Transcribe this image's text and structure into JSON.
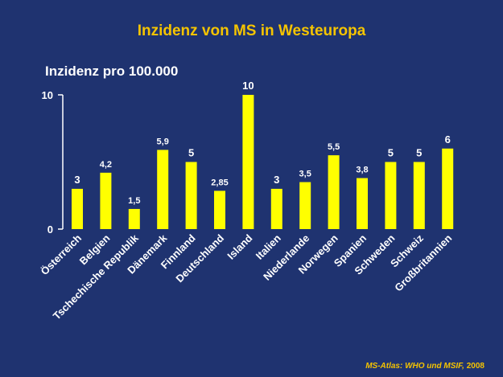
{
  "chart_data": {
    "type": "bar",
    "title": "Inzidenz von MS in Westeuropa",
    "ylabel": "Inzidenz pro 100.000",
    "xlabel": "",
    "categories": [
      "Österreich",
      "Belgien",
      "Tschechische Republik",
      "Dänemark",
      "Finnland",
      "Deutschland",
      "Island",
      "Italien",
      "Niederlande",
      "Norwegen",
      "Spanien",
      "Schweden",
      "Schweiz",
      "Großbritannien"
    ],
    "values": [
      3,
      4.2,
      1.5,
      5.9,
      5,
      2.85,
      10,
      3,
      3.5,
      5.5,
      3.8,
      5,
      5,
      6
    ],
    "value_labels": [
      "3",
      "4,2",
      "1,5",
      "5,9",
      "5",
      "2,85",
      "10",
      "3",
      "3,5",
      "5,5",
      "3,8",
      "5",
      "5",
      "6"
    ],
    "ylim": [
      0,
      10
    ],
    "yticks": [
      0,
      10
    ],
    "grid": false,
    "colors": {
      "background": "#1f3370",
      "bar": "#ffff00",
      "title": "#f5c400",
      "text": "#ffffff"
    }
  },
  "footer": {
    "source_italic": "MS-Atlas: WHO und MSIF,",
    "source_year": " 2008"
  }
}
